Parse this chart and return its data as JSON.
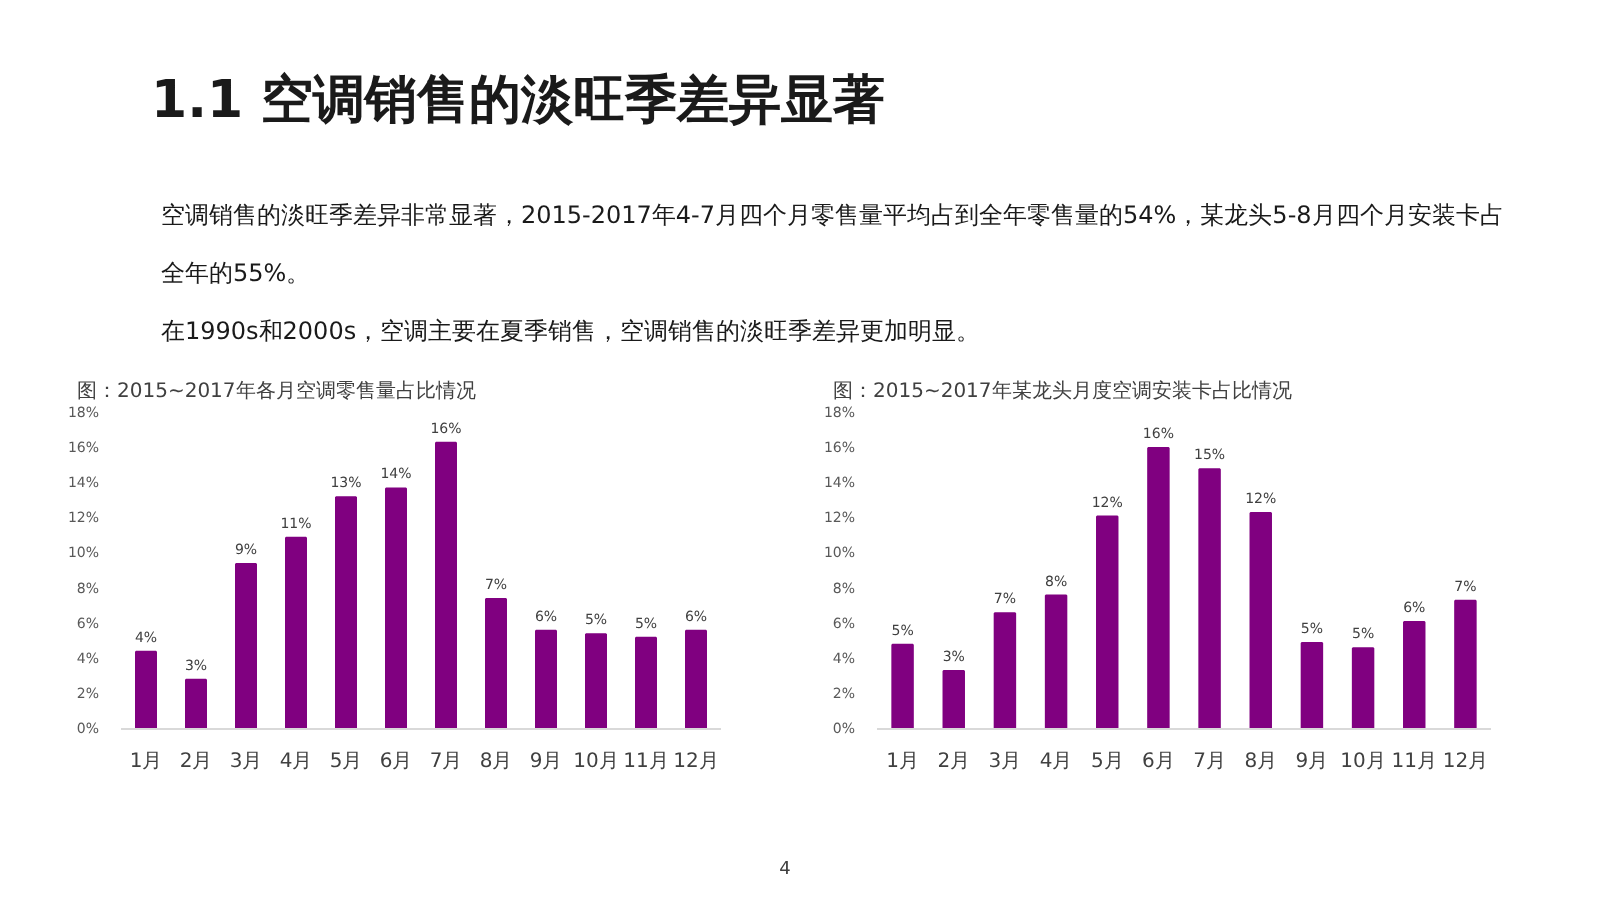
{
  "chart_data": [
    {
      "type": "other",
      "title": "1.1 空调销售的淡旺季差异显著",
      "annotations": [
        "空调销售的淡旺季差异非常显著，2015-2017年4-7月四个月零售量平均占到全年零售量的54%，某龙头5-8月四个月安装卡占全年的55%。",
        "在1990s和2000s，空调主要在夏季销售，空调销售的淡旺季差异更加明显。",
        "4"
      ]
    },
    {
      "type": "bar",
      "title": "图：2015~2017年各月空调零售量占比情况",
      "categories": [
        "1月",
        "2月",
        "3月",
        "4月",
        "5月",
        "6月",
        "7月",
        "8月",
        "9月",
        "10月",
        "11月",
        "12月"
      ],
      "values": [
        4.4,
        2.8,
        9.4,
        10.9,
        13.2,
        13.7,
        16.3,
        7.4,
        5.6,
        5.4,
        5.2,
        5.6
      ],
      "value_labels": [
        "4%",
        "3%",
        "9%",
        "11%",
        "13%",
        "14%",
        "16%",
        "7%",
        "6%",
        "5%",
        "5%",
        "6%"
      ],
      "color": "#800080",
      "ylim": [
        0,
        18
      ],
      "yticks": [
        {
          "value": 0,
          "label": "0%"
        },
        {
          "value": 2,
          "label": "2%"
        },
        {
          "value": 4,
          "label": "4%"
        },
        {
          "value": 6,
          "label": "6%"
        },
        {
          "value": 8,
          "label": "8%"
        },
        {
          "value": 10,
          "label": "10%"
        },
        {
          "value": 12,
          "label": "12%"
        },
        {
          "value": 14,
          "label": "14%"
        },
        {
          "value": 16,
          "label": "16%"
        },
        {
          "value": 18,
          "label": "18%"
        }
      ]
    },
    {
      "type": "bar",
      "title": "图：2015~2017年某龙头月度空调安装卡占比情况",
      "categories": [
        "1月",
        "2月",
        "3月",
        "4月",
        "5月",
        "6月",
        "7月",
        "8月",
        "9月",
        "10月",
        "11月",
        "12月"
      ],
      "values": [
        4.8,
        3.3,
        6.6,
        7.6,
        12.1,
        16.0,
        14.8,
        12.3,
        4.9,
        4.6,
        6.1,
        7.3
      ],
      "value_labels": [
        "5%",
        "3%",
        "7%",
        "8%",
        "12%",
        "16%",
        "15%",
        "12%",
        "5%",
        "5%",
        "6%",
        "7%"
      ],
      "color": "#800080",
      "ylim": [
        0,
        18
      ],
      "yticks": [
        {
          "value": 0,
          "label": "0%"
        },
        {
          "value": 2,
          "label": "2%"
        },
        {
          "value": 4,
          "label": "4%"
        },
        {
          "value": 6,
          "label": "6%"
        },
        {
          "value": 8,
          "label": "8%"
        },
        {
          "value": 10,
          "label": "10%"
        },
        {
          "value": 12,
          "label": "12%"
        },
        {
          "value": 14,
          "label": "14%"
        },
        {
          "value": 16,
          "label": "16%"
        },
        {
          "value": 18,
          "label": "18%"
        }
      ]
    }
  ]
}
